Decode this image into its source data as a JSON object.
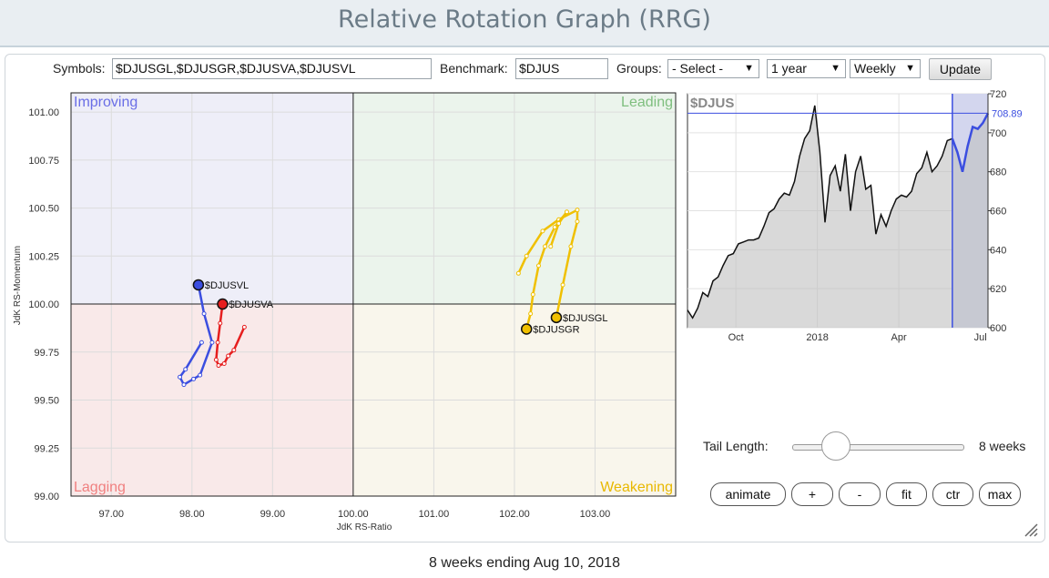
{
  "page_title": "Relative Rotation Graph (RRG)",
  "controls": {
    "symbols_label": "Symbols:",
    "symbols_value": "$DJUSGL,$DJUSGR,$DJUSVA,$DJUSVL",
    "benchmark_label": "Benchmark:",
    "benchmark_value": "$DJUS",
    "groups_label": "Groups:",
    "groups_value": "- Select -",
    "period_value": "1 year",
    "frequency_value": "Weekly",
    "update_label": "Update"
  },
  "tail": {
    "label": "Tail Length:",
    "value_text": "8 weeks",
    "weeks": 8
  },
  "buttons": {
    "animate": "animate",
    "plus": "+",
    "minus": "-",
    "fit": "fit",
    "ctr": "ctr",
    "max": "max"
  },
  "footer_text": "8 weeks ending Aug 10, 2018",
  "colors": {
    "improving": "#6a6ee6",
    "leading": "#7fbf7f",
    "lagging": "#f08080",
    "weakening": "#e8b800"
  },
  "chart_data": [
    {
      "type": "scatter",
      "title": "",
      "xlabel": "JdK RS-Ratio",
      "ylabel": "JdK RS-Momentum",
      "xlim": [
        96.5,
        104.0
      ],
      "ylim": [
        99.0,
        101.1
      ],
      "x_ticks": [
        "97.00",
        "98.00",
        "99.00",
        "100.00",
        "101.00",
        "102.00",
        "103.00"
      ],
      "y_ticks": [
        "99.00",
        "99.25",
        "99.50",
        "99.75",
        "100.00",
        "100.25",
        "100.50",
        "100.75",
        "101.00"
      ],
      "quadrants": [
        "Improving",
        "Leading",
        "Lagging",
        "Weakening"
      ],
      "series": [
        {
          "name": "$DJUSVL",
          "color": "#3b4ee0",
          "x": [
            98.12,
            97.92,
            97.85,
            97.9,
            98.02,
            98.1,
            98.25,
            98.15,
            98.08
          ],
          "y": [
            99.8,
            99.66,
            99.62,
            99.58,
            99.61,
            99.63,
            99.8,
            99.95,
            100.1
          ]
        },
        {
          "name": "$DJUSVA",
          "color": "#e61e1e",
          "x": [
            98.65,
            98.52,
            98.45,
            98.4,
            98.33,
            98.3,
            98.32,
            98.35,
            98.38
          ],
          "y": [
            99.88,
            99.76,
            99.73,
            99.69,
            99.68,
            99.71,
            99.8,
            99.9,
            100.0
          ]
        },
        {
          "name": "$DJUSGL",
          "color": "#f0c000",
          "x": [
            102.05,
            102.15,
            102.35,
            102.55,
            102.78,
            102.78,
            102.7,
            102.6,
            102.52
          ],
          "y": [
            100.16,
            100.25,
            100.38,
            100.44,
            100.49,
            100.43,
            100.3,
            100.1,
            99.93
          ]
        },
        {
          "name": "$DJUSGR",
          "color": "#f0c000",
          "x": [
            102.45,
            102.55,
            102.65,
            102.5,
            102.38,
            102.3,
            102.23,
            102.2,
            102.15
          ],
          "y": [
            100.3,
            100.42,
            100.48,
            100.4,
            100.3,
            100.2,
            100.05,
            99.95,
            99.87
          ]
        }
      ]
    },
    {
      "type": "area",
      "title": "$DJUS",
      "last_value_text": "708.89",
      "ylim": [
        600,
        720
      ],
      "y_ticks": [
        "600",
        "620",
        "640",
        "660",
        "680",
        "700",
        "720"
      ],
      "x_ticks": [
        "Oct",
        "2018",
        "Apr",
        "Jul"
      ],
      "values": [
        609,
        605,
        610,
        618,
        616,
        624,
        626,
        632,
        637,
        638,
        643,
        644,
        645,
        645,
        646,
        652,
        659,
        661,
        666,
        669,
        668,
        675,
        688,
        697,
        701,
        714,
        690,
        654,
        678,
        683,
        670,
        689,
        660,
        680,
        688,
        671,
        673,
        648,
        658,
        652,
        660,
        666,
        668,
        667,
        670,
        679,
        682,
        690,
        680,
        683,
        688,
        696,
        697,
        690,
        680,
        693,
        703,
        702,
        705,
        710
      ],
      "highlight_start_index": 52
    }
  ]
}
